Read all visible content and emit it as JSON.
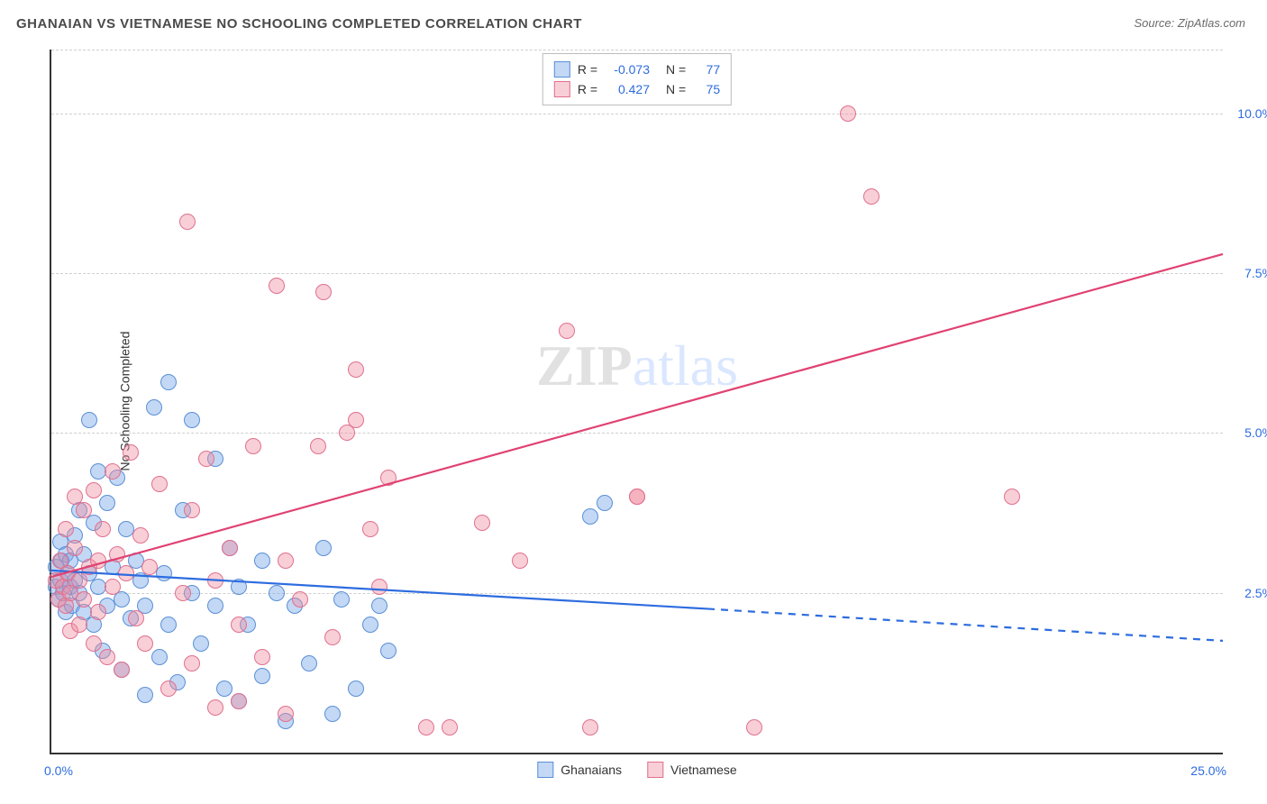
{
  "title": "GHANAIAN VS VIETNAMESE NO SCHOOLING COMPLETED CORRELATION CHART",
  "source": "Source: ZipAtlas.com",
  "ylabel": "No Schooling Completed",
  "watermark": {
    "zip": "ZIP",
    "atlas": "atlas"
  },
  "chart": {
    "type": "scatter",
    "xlim": [
      0,
      25
    ],
    "ylim": [
      0,
      11
    ],
    "x_ticks": [
      "0.0%",
      "25.0%"
    ],
    "y_gridlines": [
      2.5,
      5.0,
      7.5,
      10.0,
      11.0
    ],
    "y_tick_labels": [
      "2.5%",
      "5.0%",
      "7.5%",
      "10.0%",
      ""
    ],
    "grid_color": "#cfcfcf",
    "background_color": "#ffffff",
    "axis_color": "#333333",
    "marker_radius": 9,
    "marker_border": 1.4,
    "series": [
      {
        "name": "Ghanaians",
        "fill": "rgba(121,168,232,0.45)",
        "stroke": "#5a8fd6",
        "R": "-0.073",
        "N": "77",
        "trend": {
          "start": [
            0,
            2.85
          ],
          "end_solid": [
            14,
            2.25
          ],
          "end_dash": [
            25,
            1.75
          ],
          "color": "#2d6cdf",
          "width": 2
        },
        "points": [
          [
            0.1,
            2.6
          ],
          [
            0.1,
            2.9
          ],
          [
            0.15,
            2.4
          ],
          [
            0.2,
            3.3
          ],
          [
            0.2,
            2.7
          ],
          [
            0.22,
            3.0
          ],
          [
            0.25,
            2.5
          ],
          [
            0.3,
            2.2
          ],
          [
            0.3,
            3.1
          ],
          [
            0.35,
            2.8
          ],
          [
            0.4,
            2.6
          ],
          [
            0.4,
            3.0
          ],
          [
            0.45,
            2.3
          ],
          [
            0.5,
            3.4
          ],
          [
            0.5,
            2.7
          ],
          [
            0.6,
            3.8
          ],
          [
            0.6,
            2.5
          ],
          [
            0.7,
            3.1
          ],
          [
            0.7,
            2.2
          ],
          [
            0.8,
            5.2
          ],
          [
            0.8,
            2.8
          ],
          [
            0.9,
            2.0
          ],
          [
            0.9,
            3.6
          ],
          [
            1.0,
            4.4
          ],
          [
            1.0,
            2.6
          ],
          [
            1.1,
            1.6
          ],
          [
            1.2,
            2.3
          ],
          [
            1.2,
            3.9
          ],
          [
            1.3,
            2.9
          ],
          [
            1.4,
            4.3
          ],
          [
            1.5,
            2.4
          ],
          [
            1.5,
            1.3
          ],
          [
            1.6,
            3.5
          ],
          [
            1.7,
            2.1
          ],
          [
            1.8,
            3.0
          ],
          [
            1.9,
            2.7
          ],
          [
            2.0,
            2.3
          ],
          [
            2.0,
            0.9
          ],
          [
            2.2,
            5.4
          ],
          [
            2.3,
            1.5
          ],
          [
            2.4,
            2.8
          ],
          [
            2.5,
            5.8
          ],
          [
            2.5,
            2.0
          ],
          [
            2.7,
            1.1
          ],
          [
            2.8,
            3.8
          ],
          [
            3.0,
            5.2
          ],
          [
            3.0,
            2.5
          ],
          [
            3.2,
            1.7
          ],
          [
            3.5,
            4.6
          ],
          [
            3.5,
            2.3
          ],
          [
            3.7,
            1.0
          ],
          [
            3.8,
            3.2
          ],
          [
            4.0,
            2.6
          ],
          [
            4.0,
            0.8
          ],
          [
            4.2,
            2.0
          ],
          [
            4.5,
            3.0
          ],
          [
            4.5,
            1.2
          ],
          [
            4.8,
            2.5
          ],
          [
            5.0,
            0.5
          ],
          [
            5.2,
            2.3
          ],
          [
            5.5,
            1.4
          ],
          [
            5.8,
            3.2
          ],
          [
            6.0,
            0.6
          ],
          [
            6.2,
            2.4
          ],
          [
            6.5,
            1.0
          ],
          [
            6.8,
            2.0
          ],
          [
            7.0,
            2.3
          ],
          [
            7.2,
            1.6
          ],
          [
            11.5,
            3.7
          ],
          [
            11.8,
            3.9
          ]
        ]
      },
      {
        "name": "Vietnamese",
        "fill": "rgba(240,140,160,0.42)",
        "stroke": "#e0708e",
        "R": "0.427",
        "N": "75",
        "trend": {
          "start": [
            0,
            2.75
          ],
          "end_solid": [
            25,
            7.8
          ],
          "color": "#e04272",
          "width": 2
        },
        "points": [
          [
            0.1,
            2.7
          ],
          [
            0.15,
            2.4
          ],
          [
            0.2,
            3.0
          ],
          [
            0.25,
            2.6
          ],
          [
            0.3,
            3.5
          ],
          [
            0.3,
            2.3
          ],
          [
            0.35,
            2.8
          ],
          [
            0.4,
            2.5
          ],
          [
            0.4,
            1.9
          ],
          [
            0.5,
            3.2
          ],
          [
            0.5,
            4.0
          ],
          [
            0.6,
            2.7
          ],
          [
            0.6,
            2.0
          ],
          [
            0.7,
            3.8
          ],
          [
            0.7,
            2.4
          ],
          [
            0.8,
            2.9
          ],
          [
            0.9,
            4.1
          ],
          [
            0.9,
            1.7
          ],
          [
            1.0,
            3.0
          ],
          [
            1.0,
            2.2
          ],
          [
            1.1,
            3.5
          ],
          [
            1.2,
            1.5
          ],
          [
            1.3,
            4.4
          ],
          [
            1.3,
            2.6
          ],
          [
            1.4,
            3.1
          ],
          [
            1.5,
            1.3
          ],
          [
            1.6,
            2.8
          ],
          [
            1.7,
            4.7
          ],
          [
            1.8,
            2.1
          ],
          [
            1.9,
            3.4
          ],
          [
            2.0,
            1.7
          ],
          [
            2.1,
            2.9
          ],
          [
            2.3,
            4.2
          ],
          [
            2.5,
            1.0
          ],
          [
            2.9,
            8.3
          ],
          [
            2.8,
            2.5
          ],
          [
            3.0,
            3.8
          ],
          [
            3.0,
            1.4
          ],
          [
            3.3,
            4.6
          ],
          [
            3.5,
            2.7
          ],
          [
            3.5,
            0.7
          ],
          [
            3.8,
            3.2
          ],
          [
            4.0,
            2.0
          ],
          [
            4.0,
            0.8
          ],
          [
            4.3,
            4.8
          ],
          [
            4.5,
            1.5
          ],
          [
            4.8,
            7.3
          ],
          [
            5.0,
            3.0
          ],
          [
            5.0,
            0.6
          ],
          [
            5.3,
            2.4
          ],
          [
            5.7,
            4.8
          ],
          [
            5.8,
            7.2
          ],
          [
            6.0,
            1.8
          ],
          [
            6.3,
            5.0
          ],
          [
            6.5,
            5.2
          ],
          [
            6.8,
            3.5
          ],
          [
            6.5,
            6.0
          ],
          [
            7.0,
            2.6
          ],
          [
            7.2,
            4.3
          ],
          [
            8.0,
            0.4
          ],
          [
            8.5,
            0.4
          ],
          [
            9.2,
            3.6
          ],
          [
            10.0,
            3.0
          ],
          [
            11.5,
            0.4
          ],
          [
            11.0,
            6.6
          ],
          [
            12.5,
            4.0
          ],
          [
            12.5,
            4.0
          ],
          [
            15.0,
            0.4
          ],
          [
            17.0,
            10.0
          ],
          [
            17.5,
            8.7
          ],
          [
            20.5,
            4.0
          ]
        ]
      }
    ],
    "legend_labels": [
      "Ghanaians",
      "Vietnamese"
    ]
  }
}
